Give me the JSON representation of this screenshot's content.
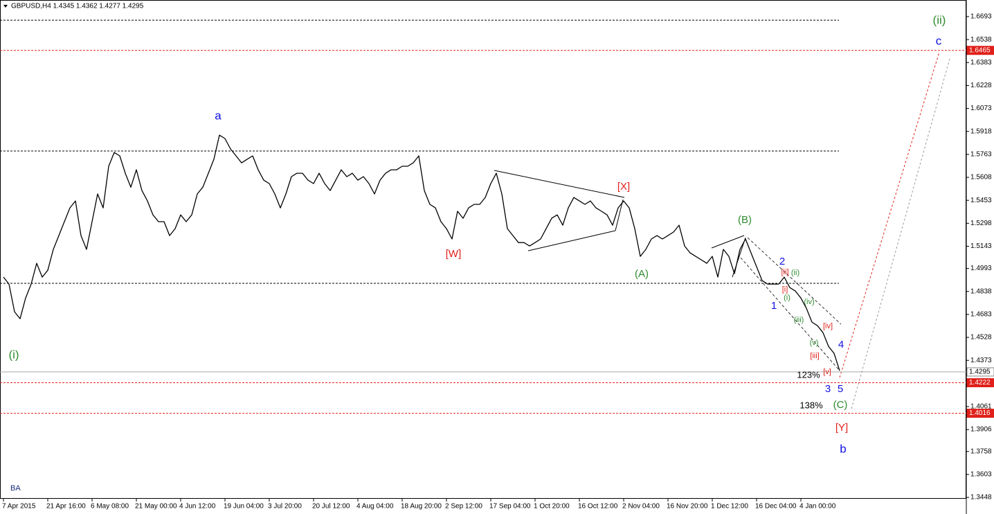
{
  "chart_data": {
    "type": "line",
    "title": "GBPUSD,H4  1.4345 1.4362 1.4277 1.4295",
    "watermark": "BA",
    "categories": [
      "7 Apr 2015",
      null,
      null,
      null,
      null,
      null,
      null,
      null,
      "21 Apr 16:00",
      null,
      null,
      null,
      null,
      null,
      null,
      null,
      "6 May 08:00",
      null,
      null,
      null,
      null,
      null,
      null,
      null,
      "21 May 00:00",
      null,
      null,
      null,
      null,
      null,
      null,
      null,
      "4 Jun 12:00",
      null,
      null,
      null,
      null,
      null,
      null,
      null,
      "19 Jun 04:00",
      null,
      null,
      null,
      null,
      null,
      null,
      null,
      "3 Jul 20:00",
      null,
      null,
      null,
      null,
      null,
      null,
      null,
      "20 Jul 12:00",
      null,
      null,
      null,
      null,
      null,
      null,
      null,
      "4 Aug 04:00",
      null,
      null,
      null,
      null,
      null,
      null,
      null,
      "18 Aug 20:00",
      null,
      null,
      null,
      null,
      null,
      null,
      null,
      "2 Sep 12:00",
      null,
      null,
      null,
      null,
      null,
      null,
      null,
      "17 Sep 04:00",
      null,
      null,
      null,
      null,
      null,
      null,
      null,
      "1 Oct 20:00",
      null,
      null,
      null,
      null,
      null,
      null,
      null,
      "16 Oct 12:00",
      null,
      null,
      null,
      null,
      null,
      null,
      null,
      "2 Nov 04:00",
      null,
      null,
      null,
      null,
      null,
      null,
      null,
      "16 Nov 20:00",
      null,
      null,
      null,
      null,
      null,
      null,
      null,
      "1 Dec 12:00",
      null,
      null,
      null,
      null,
      null,
      null,
      null,
      "16 Dec 04:00",
      null,
      null,
      null,
      null,
      null,
      null,
      null,
      "4 Jan 00:00",
      null,
      null,
      null,
      null,
      null,
      null,
      null,
      null,
      null,
      null,
      null,
      null,
      null,
      null,
      null,
      null,
      null,
      null,
      null,
      null,
      null,
      null,
      null,
      null,
      null,
      null,
      null,
      null,
      null
    ],
    "series": [
      {
        "name": "GBPUSD",
        "color": "#000000",
        "values": [
          1.4935,
          1.4888,
          1.4701,
          1.4654,
          1.4794,
          1.4888,
          1.5028,
          1.4935,
          1.4981,
          1.5122,
          1.5215,
          1.5309,
          1.5402,
          1.5449,
          1.5215,
          1.5122,
          1.5309,
          1.5496,
          1.5402,
          1.5683,
          1.5776,
          1.5753,
          1.5636,
          1.5542,
          1.5659,
          1.5519,
          1.5449,
          1.5355,
          1.5309,
          1.5309,
          1.5215,
          1.5262,
          1.5355,
          1.5309,
          1.5355,
          1.5496,
          1.5542,
          1.5636,
          1.573,
          1.5893,
          1.587,
          1.58,
          1.5753,
          1.5706,
          1.573,
          1.5753,
          1.5659,
          1.5589,
          1.5566,
          1.5496,
          1.5402,
          1.5496,
          1.5613,
          1.5636,
          1.5636,
          1.5589,
          1.5566,
          1.5636,
          1.5566,
          1.5519,
          1.5589,
          1.5659,
          1.5613,
          1.5636,
          1.5589,
          1.5613,
          1.5566,
          1.5496,
          1.5589,
          1.5636,
          1.5659,
          1.5659,
          1.5683,
          1.5683,
          1.5706,
          1.5753,
          1.5519,
          1.5426,
          1.5402,
          1.5309,
          1.5262,
          1.5192,
          1.5379,
          1.5332,
          1.5402,
          1.5426,
          1.5426,
          1.5472,
          1.5566,
          1.5636,
          1.5496,
          1.5262,
          1.5215,
          1.5168,
          1.5168,
          1.5145,
          1.5168,
          1.5192,
          1.5262,
          1.5332,
          1.5355,
          1.5285,
          1.5402,
          1.5472,
          1.5449,
          1.5426,
          1.5449,
          1.5402,
          1.5379,
          1.5355,
          1.5285,
          1.5402,
          1.5449,
          1.5402,
          1.5262,
          1.5075,
          1.5122,
          1.5192,
          1.5215,
          1.5192,
          1.5215,
          1.5239,
          1.5285,
          1.5145,
          1.5098,
          1.5075,
          1.5052,
          1.5028,
          1.5075,
          1.4935,
          1.5122,
          1.5075,
          1.4958,
          1.5122,
          1.5192,
          1.5098,
          1.5005,
          1.4911,
          1.4888,
          1.4888,
          1.4888,
          1.4935,
          1.4864,
          1.4841,
          1.4794,
          1.4724,
          1.4631,
          1.4607,
          1.456,
          1.4467,
          1.442,
          1.4303,
          null,
          null,
          null,
          null,
          null,
          null,
          null,
          null,
          null,
          null,
          null,
          null,
          null,
          null,
          null,
          null,
          null,
          null,
          null,
          null,
          null,
          null
        ]
      }
    ],
    "ylim": [
      1.3439,
      1.6805
    ],
    "yticks": [
      1.6693,
      1.6538,
      1.6383,
      1.6228,
      1.6073,
      1.5918,
      1.5763,
      1.5608,
      1.5453,
      1.5298,
      1.5143,
      1.4993,
      1.4838,
      1.4683,
      1.4528,
      1.4373,
      1.4061,
      1.3906,
      1.3758,
      1.3603,
      1.3448
    ],
    "levels": [
      {
        "value": 1.6669,
        "color": "#000000",
        "style": "dotted"
      },
      {
        "value": 1.6465,
        "color": "#e0201a",
        "style": "dotted",
        "label": "1.6465"
      },
      {
        "value": 1.5786,
        "color": "#000000",
        "style": "dotted"
      },
      {
        "value": 1.4893,
        "color": "#000000",
        "style": "dotted"
      },
      {
        "value": 1.4295,
        "color": "#a8a8a8",
        "style": "solid",
        "label": "1.4295"
      },
      {
        "value": 1.4222,
        "color": "#e0201a",
        "style": "dotted",
        "label": "1.4222"
      },
      {
        "value": 1.4016,
        "color": "#e0201a",
        "style": "dotted",
        "label": "1.4016"
      }
    ],
    "annotations": [
      {
        "text": "a",
        "color": "#1010e0"
      },
      {
        "text": "(i)",
        "color": "#2e8b2e"
      },
      {
        "text": "[W]",
        "color": "#e0201a"
      },
      {
        "text": "[X]",
        "color": "#e0201a"
      },
      {
        "text": "(A)",
        "color": "#2e8b2e"
      },
      {
        "text": "(B)",
        "color": "#2e8b2e"
      },
      {
        "text": "2",
        "color": "#1010e0"
      },
      {
        "text": "[ii]",
        "color": "#e0201a"
      },
      {
        "text": "(ii)",
        "color": "#2e8b2e"
      },
      {
        "text": "[i]",
        "color": "#e0201a"
      },
      {
        "text": "(i)",
        "color": "#2e8b2e"
      },
      {
        "text": "1",
        "color": "#1010e0"
      },
      {
        "text": "(iv)",
        "color": "#2e8b2e"
      },
      {
        "text": "(iii)",
        "color": "#2e8b2e"
      },
      {
        "text": "[iv]",
        "color": "#e0201a"
      },
      {
        "text": "(v)",
        "color": "#2e8b2e"
      },
      {
        "text": "4",
        "color": "#1010e0"
      },
      {
        "text": "[iii]",
        "color": "#e0201a"
      },
      {
        "text": "[v]",
        "color": "#e0201a"
      },
      {
        "text": "123%",
        "color": "#000000"
      },
      {
        "text": "3",
        "color": "#1010e0"
      },
      {
        "text": "5",
        "color": "#1010e0"
      },
      {
        "text": "138%",
        "color": "#000000"
      },
      {
        "text": "(C)",
        "color": "#2e8b2e"
      },
      {
        "text": "[Y]",
        "color": "#e0201a"
      },
      {
        "text": "b",
        "color": "#1010e0"
      },
      {
        "text": "(ii)",
        "color": "#2e8b2e"
      },
      {
        "text": "c",
        "color": "#1010e0"
      }
    ]
  }
}
